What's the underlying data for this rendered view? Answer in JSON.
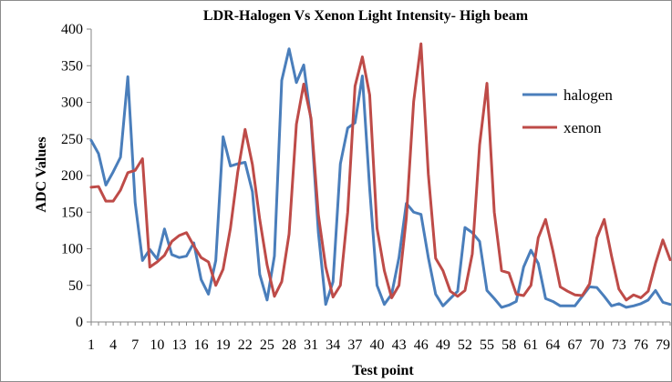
{
  "chart_data": {
    "type": "line",
    "title": "LDR-Halogen Vs Xenon Light Intensity-  High beam",
    "xlabel": "Test point",
    "ylabel": "ADC Values",
    "ylim": [
      0,
      400
    ],
    "yticks": [
      0,
      50,
      100,
      150,
      200,
      250,
      300,
      350,
      400
    ],
    "xticks": [
      1,
      4,
      7,
      10,
      13,
      16,
      19,
      22,
      25,
      28,
      31,
      34,
      37,
      40,
      43,
      46,
      49,
      52,
      55,
      58,
      61,
      64,
      67,
      70,
      73,
      76,
      79
    ],
    "x": [
      1,
      2,
      3,
      4,
      5,
      6,
      7,
      8,
      9,
      10,
      11,
      12,
      13,
      14,
      15,
      16,
      17,
      18,
      19,
      20,
      21,
      22,
      23,
      24,
      25,
      26,
      27,
      28,
      29,
      30,
      31,
      32,
      33,
      34,
      35,
      36,
      37,
      38,
      39,
      40,
      41,
      42,
      43,
      44,
      45,
      46,
      47,
      48,
      49,
      50,
      51,
      52,
      53,
      54,
      55,
      56,
      57,
      58,
      59,
      60,
      61,
      62,
      63,
      64,
      65,
      66,
      67,
      68,
      69,
      70,
      71,
      72,
      73,
      74,
      75,
      76,
      77,
      78,
      79,
      80
    ],
    "grid": false,
    "legend_position": "right",
    "series": [
      {
        "name": "halogen",
        "color": "#4a7ebb",
        "values": [
          248,
          230,
          187,
          205,
          225,
          335,
          163,
          84,
          99,
          86,
          127,
          92,
          88,
          90,
          108,
          58,
          38,
          84,
          253,
          213,
          216,
          218,
          178,
          65,
          30,
          90,
          330,
          373,
          327,
          351,
          275,
          122,
          24,
          55,
          216,
          265,
          272,
          336,
          182,
          50,
          24,
          38,
          88,
          162,
          150,
          147,
          88,
          38,
          22,
          32,
          42,
          129,
          122,
          110,
          43,
          32,
          20,
          23,
          28,
          75,
          98,
          80,
          32,
          28,
          22,
          22,
          22,
          35,
          48,
          47,
          35,
          22,
          25,
          20,
          22,
          25,
          30,
          43,
          27,
          24
        ]
      },
      {
        "name": "xenon",
        "color": "#be4b48",
        "values": [
          184,
          185,
          165,
          165,
          180,
          204,
          207,
          223,
          75,
          82,
          91,
          110,
          118,
          122,
          104,
          88,
          82,
          50,
          72,
          128,
          205,
          263,
          215,
          140,
          78,
          35,
          55,
          120,
          270,
          325,
          278,
          146,
          75,
          34,
          50,
          150,
          322,
          362,
          310,
          128,
          70,
          33,
          50,
          142,
          301,
          380,
          202,
          87,
          70,
          42,
          35,
          43,
          93,
          242,
          326,
          150,
          70,
          67,
          38,
          36,
          50,
          115,
          140,
          97,
          48,
          42,
          37,
          36,
          52,
          115,
          140,
          90,
          45,
          30,
          37,
          33,
          42,
          80,
          112,
          85
        ]
      }
    ]
  }
}
